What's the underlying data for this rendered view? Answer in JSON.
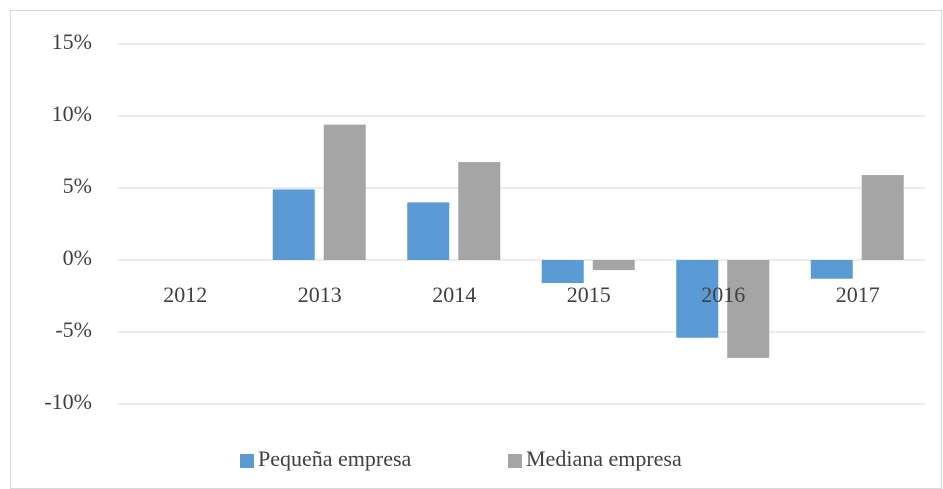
{
  "chart_data": {
    "type": "bar",
    "categories": [
      "2012",
      "2013",
      "2014",
      "2015",
      "2016",
      "2017"
    ],
    "series": [
      {
        "name": "Pequeña empresa",
        "color": "#5b9bd5",
        "values": [
          0,
          4.9,
          4.0,
          -1.6,
          -5.4,
          -1.3
        ]
      },
      {
        "name": "Mediana empresa",
        "color": "#a5a5a5",
        "values": [
          0,
          9.4,
          6.8,
          -0.7,
          -6.8,
          5.9
        ]
      }
    ],
    "ylim": [
      -10,
      15
    ],
    "yticks": [
      {
        "value": -10,
        "label": "-10%"
      },
      {
        "value": -5,
        "label": "-5%"
      },
      {
        "value": 0,
        "label": "0%"
      },
      {
        "value": 5,
        "label": "5%"
      },
      {
        "value": 10,
        "label": "10%"
      },
      {
        "value": 15,
        "label": "15%"
      }
    ],
    "grid": true,
    "legend": "bottom"
  }
}
